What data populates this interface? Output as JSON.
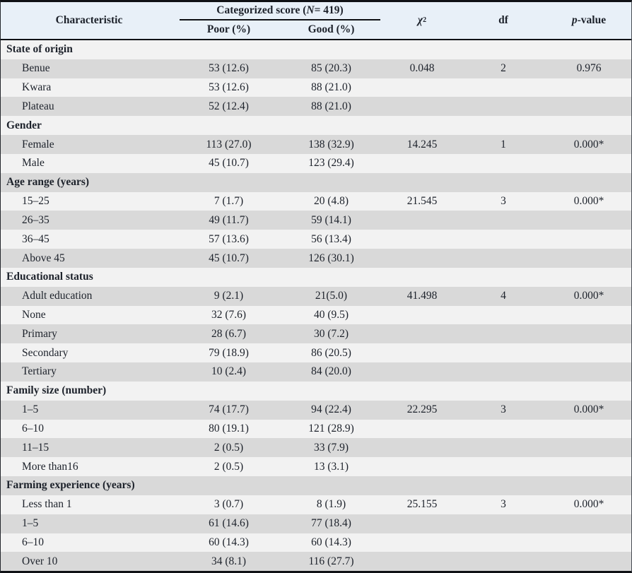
{
  "colors": {
    "header_bg": "#e8f0f8",
    "row_light": "#f2f2f2",
    "row_dark": "#d9d9d9",
    "border": "#0f1115",
    "text": "#1d222b"
  },
  "header": {
    "characteristic": "Characteristic",
    "spanner_prefix": "Categorized score (",
    "spanner_n": "N",
    "spanner_suffix": " = 419)",
    "poor": "Poor (%)",
    "good": "Good (%)",
    "chi_symbol": "χ",
    "chi_sup": "2",
    "df": "df",
    "p_italic": "p",
    "p_suffix": "-value"
  },
  "rows": [
    {
      "type": "section",
      "label": "State of origin"
    },
    {
      "type": "data",
      "label": "Benue",
      "poor": "53 (12.6)",
      "good": "85 (20.3)",
      "chi2": "0.048",
      "df": "2",
      "p": "0.976"
    },
    {
      "type": "data",
      "label": "Kwara",
      "poor": "53 (12.6)",
      "good": "88 (21.0)",
      "chi2": "",
      "df": "",
      "p": ""
    },
    {
      "type": "data",
      "label": "Plateau",
      "poor": "52 (12.4)",
      "good": "88 (21.0)",
      "chi2": "",
      "df": "",
      "p": ""
    },
    {
      "type": "section",
      "label": "Gender"
    },
    {
      "type": "data",
      "label": "Female",
      "poor": "113 (27.0)",
      "good": "138 (32.9)",
      "chi2": "14.245",
      "df": "1",
      "p": "0.000*"
    },
    {
      "type": "data",
      "label": "Male",
      "poor": "45 (10.7)",
      "good": "123 (29.4)",
      "chi2": "",
      "df": "",
      "p": ""
    },
    {
      "type": "section",
      "label": "Age range (years)"
    },
    {
      "type": "data",
      "label": "15–25",
      "poor": "7 (1.7)",
      "good": "20 (4.8)",
      "chi2": "21.545",
      "df": "3",
      "p": "0.000*"
    },
    {
      "type": "data",
      "label": "26–35",
      "poor": "49 (11.7)",
      "good": "59 (14.1)",
      "chi2": "",
      "df": "",
      "p": ""
    },
    {
      "type": "data",
      "label": "36–45",
      "poor": "57 (13.6)",
      "good": "56 (13.4)",
      "chi2": "",
      "df": "",
      "p": ""
    },
    {
      "type": "data",
      "label": "Above 45",
      "poor": "45 (10.7)",
      "good": "126 (30.1)",
      "chi2": "",
      "df": "",
      "p": ""
    },
    {
      "type": "section",
      "label": "Educational status"
    },
    {
      "type": "data",
      "label": "Adult education",
      "poor": "9 (2.1)",
      "good": "21(5.0)",
      "chi2": "41.498",
      "df": "4",
      "p": "0.000*"
    },
    {
      "type": "data",
      "label": "None",
      "poor": "32 (7.6)",
      "good": "40 (9.5)",
      "chi2": "",
      "df": "",
      "p": ""
    },
    {
      "type": "data",
      "label": "Primary",
      "poor": "28 (6.7)",
      "good": "30 (7.2)",
      "chi2": "",
      "df": "",
      "p": ""
    },
    {
      "type": "data",
      "label": "Secondary",
      "poor": "79 (18.9)",
      "good": "86 (20.5)",
      "chi2": "",
      "df": "",
      "p": ""
    },
    {
      "type": "data",
      "label": "Tertiary",
      "poor": "10 (2.4)",
      "good": "84 (20.0)",
      "chi2": "",
      "df": "",
      "p": ""
    },
    {
      "type": "section",
      "label": "Family size (number)"
    },
    {
      "type": "data",
      "label": "1–5",
      "poor": "74 (17.7)",
      "good": "94 (22.4)",
      "chi2": "22.295",
      "df": "3",
      "p": "0.000*"
    },
    {
      "type": "data",
      "label": "6–10",
      "poor": "80 (19.1)",
      "good": "121 (28.9)",
      "chi2": "",
      "df": "",
      "p": ""
    },
    {
      "type": "data",
      "label": "11–15",
      "poor": "2 (0.5)",
      "good": "33 (7.9)",
      "chi2": "",
      "df": "",
      "p": ""
    },
    {
      "type": "data",
      "label": "More than16",
      "poor": "2 (0.5)",
      "good": "13 (3.1)",
      "chi2": "",
      "df": "",
      "p": ""
    },
    {
      "type": "section",
      "label": "Farming experience (years)"
    },
    {
      "type": "data",
      "label": "Less than 1",
      "poor": "3 (0.7)",
      "good": "8 (1.9)",
      "chi2": "25.155",
      "df": "3",
      "p": "0.000*"
    },
    {
      "type": "data",
      "label": "1–5",
      "poor": "61 (14.6)",
      "good": "77 (18.4)",
      "chi2": "",
      "df": "",
      "p": ""
    },
    {
      "type": "data",
      "label": "6–10",
      "poor": "60 (14.3)",
      "good": "60 (14.3)",
      "chi2": "",
      "df": "",
      "p": ""
    },
    {
      "type": "data",
      "label": "Over 10",
      "poor": "34 (8.1)",
      "good": "116 (27.7)",
      "chi2": "",
      "df": "",
      "p": ""
    }
  ]
}
